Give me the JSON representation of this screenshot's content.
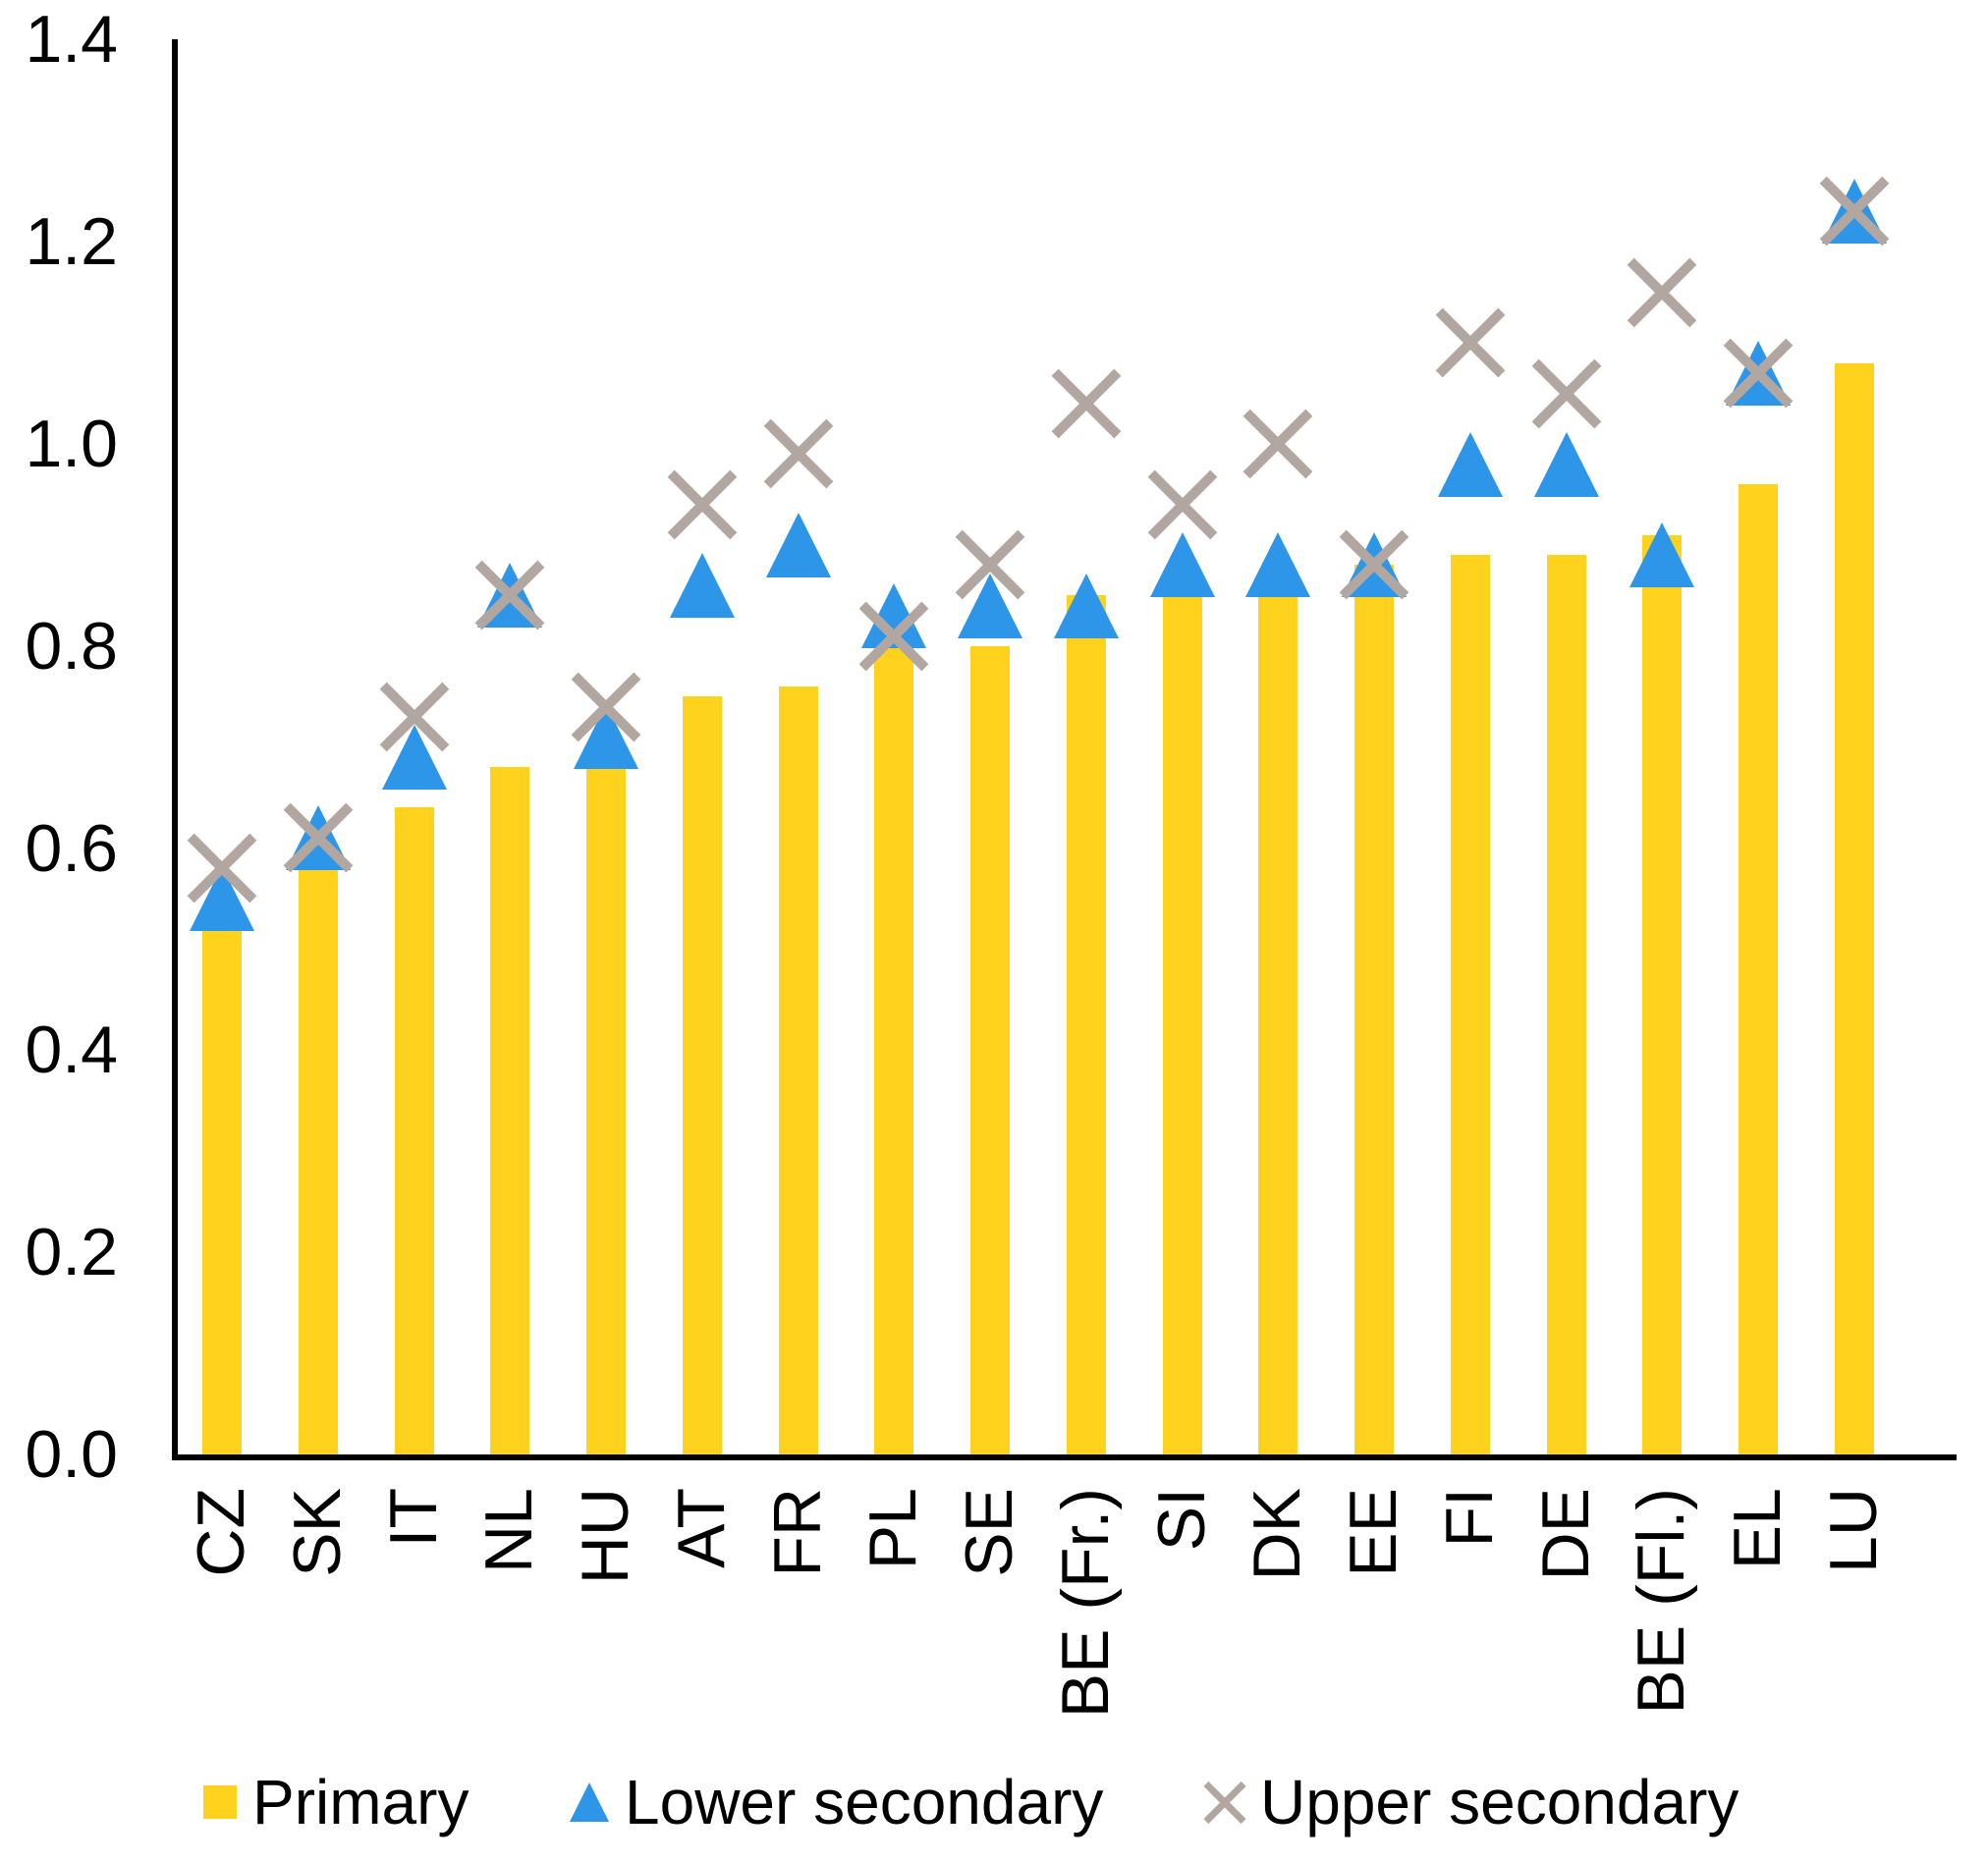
{
  "chart_data": {
    "type": "bar",
    "title": "",
    "categories": [
      "CZ",
      "SK",
      "IT",
      "NL",
      "HU",
      "AT",
      "FR",
      "PL",
      "SE",
      "BE (Fr.)",
      "SI",
      "DK",
      "EE",
      "FI",
      "DE",
      "BE (Fl.)",
      "EL",
      "LU"
    ],
    "series": [
      {
        "name": "Primary",
        "type": "bar",
        "marker": "square",
        "color": "#FFD21E",
        "values": [
          0.52,
          0.58,
          0.64,
          0.68,
          0.68,
          0.75,
          0.76,
          0.8,
          0.8,
          0.85,
          0.85,
          0.85,
          0.88,
          0.89,
          0.89,
          0.91,
          0.96,
          1.08
        ]
      },
      {
        "name": "Lower secondary",
        "type": "scatter",
        "marker": "triangle",
        "color": "#2E96E8",
        "values": [
          0.55,
          0.61,
          0.69,
          0.85,
          0.71,
          0.86,
          0.9,
          0.83,
          0.84,
          0.84,
          0.88,
          0.88,
          0.88,
          0.98,
          0.98,
          0.89,
          1.07,
          1.23
        ]
      },
      {
        "name": "Upper secondary",
        "type": "scatter",
        "marker": "x",
        "color": "#B2A7A0",
        "values": [
          0.58,
          0.61,
          0.73,
          0.85,
          0.74,
          0.94,
          0.99,
          0.81,
          0.88,
          1.04,
          0.94,
          1.0,
          0.88,
          1.1,
          1.05,
          1.15,
          1.07,
          1.23
        ]
      }
    ],
    "y_axis": {
      "min": 0.0,
      "max": 1.4,
      "step": 0.2,
      "tick_labels": [
        "0.0",
        "0.2",
        "0.4",
        "0.6",
        "0.8",
        "1.0",
        "1.2",
        "1.4"
      ]
    },
    "x_axis": {
      "label_rotation": -90
    },
    "grid": false,
    "legend_position": "bottom",
    "axis_color": "#000000",
    "background_color": "#FFFFFF"
  },
  "legend": {
    "items": [
      "Primary",
      "Lower secondary",
      "Upper secondary"
    ]
  }
}
